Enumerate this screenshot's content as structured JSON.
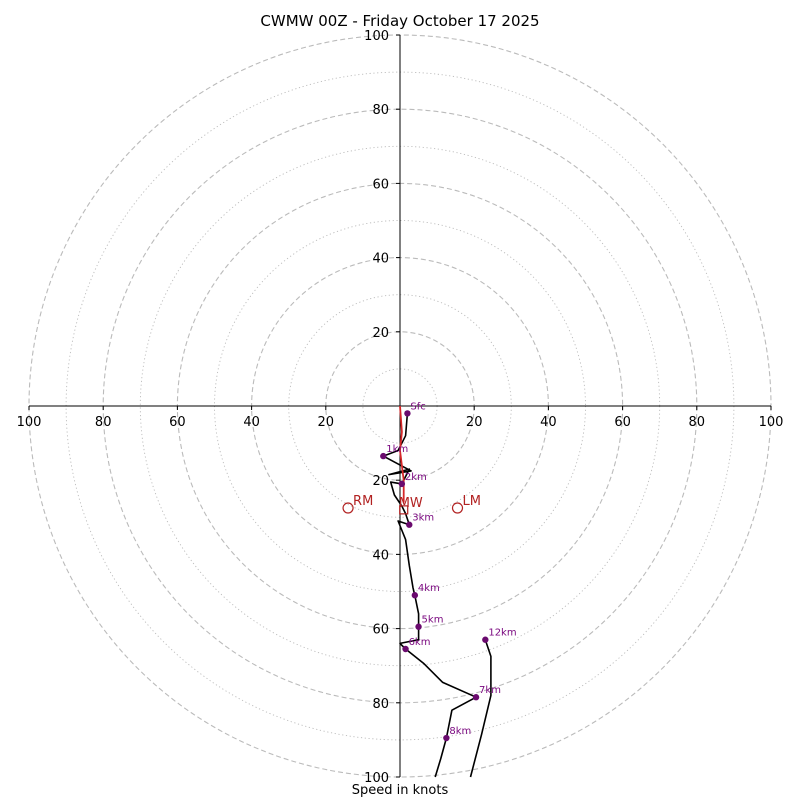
{
  "chart_data": {
    "type": "hodograph",
    "title": "CWMW 00Z - Friday October 17 2025",
    "xlabel": "Speed in knots",
    "range": [
      -100,
      100
    ],
    "ring_values_dashed": [
      20,
      40,
      60,
      80,
      100
    ],
    "ring_values_dotted": [
      10,
      30,
      50,
      70,
      90
    ],
    "tick_labels": {
      "x_left": [
        "100",
        "80",
        "60",
        "40",
        "20"
      ],
      "x_right": [
        "20",
        "40",
        "60",
        "80",
        "100"
      ],
      "y_up": [
        "20",
        "40",
        "60",
        "80",
        "100"
      ],
      "y_down": [
        "20",
        "40",
        "60",
        "80",
        "100"
      ]
    },
    "profile_lower": [
      [
        2,
        -2
      ],
      [
        1.5,
        -8
      ],
      [
        -0.5,
        -12
      ],
      [
        -4.5,
        -13.5
      ],
      [
        3,
        -17.5
      ],
      [
        -3,
        -18.5
      ],
      [
        2.5,
        -17
      ],
      [
        0.5,
        -21
      ],
      [
        -2.5,
        -20.5
      ],
      [
        -1.5,
        -24
      ],
      [
        0.5,
        -27
      ],
      [
        1.5,
        -29
      ],
      [
        2.5,
        -32
      ],
      [
        -0.5,
        -31
      ],
      [
        1.5,
        -36
      ],
      [
        2.5,
        -43
      ],
      [
        3.5,
        -49
      ],
      [
        4,
        -51
      ],
      [
        5,
        -56
      ],
      [
        5,
        -59.5
      ],
      [
        5,
        -63
      ],
      [
        0,
        -64
      ],
      [
        1.5,
        -65.5
      ],
      [
        6.5,
        -69.5
      ],
      [
        11.5,
        -74.5
      ],
      [
        20.5,
        -78.5
      ],
      [
        14,
        -82
      ],
      [
        12.5,
        -89.5
      ],
      [
        11,
        -95
      ],
      [
        9.5,
        -100
      ]
    ],
    "profile_upper": [
      [
        23,
        -63
      ],
      [
        24.5,
        -67.5
      ],
      [
        24.5,
        -78
      ],
      [
        22,
        -88.5
      ],
      [
        19,
        -100
      ]
    ],
    "points": [
      {
        "label": "Sfc",
        "x": 2,
        "y": -2
      },
      {
        "label": "1km",
        "x": -4.5,
        "y": -13.5
      },
      {
        "label": "2km",
        "x": 0.5,
        "y": -21
      },
      {
        "label": "3km",
        "x": 2.5,
        "y": -32
      },
      {
        "label": "4km",
        "x": 4,
        "y": -51
      },
      {
        "label": "5km",
        "x": 5,
        "y": -59.5
      },
      {
        "label": "6km",
        "x": 1.5,
        "y": -65.5
      },
      {
        "label": "7km",
        "x": 20.5,
        "y": -78.5
      },
      {
        "label": "8km",
        "x": 12.5,
        "y": -89.5
      },
      {
        "label": "12km",
        "x": 23,
        "y": -63
      }
    ],
    "storm_motion_line": [
      [
        0,
        0
      ],
      [
        0.5,
        -7
      ],
      [
        0,
        -12
      ],
      [
        1,
        -20
      ],
      [
        1,
        -26
      ]
    ],
    "markers": [
      {
        "label": "RM",
        "shape": "circle",
        "x": -14,
        "y": -27.5
      },
      {
        "label": "LM",
        "shape": "circle",
        "x": 15.5,
        "y": -27.5
      },
      {
        "label": "MW",
        "shape": "square",
        "x": 1,
        "y": -28
      }
    ],
    "colors": {
      "profile": "#000000",
      "points": "#6a0a6e",
      "point_labels": "#7b0a80",
      "storm": "#d62728",
      "markers": "#b22222",
      "rings": "#bbbbbb"
    }
  }
}
